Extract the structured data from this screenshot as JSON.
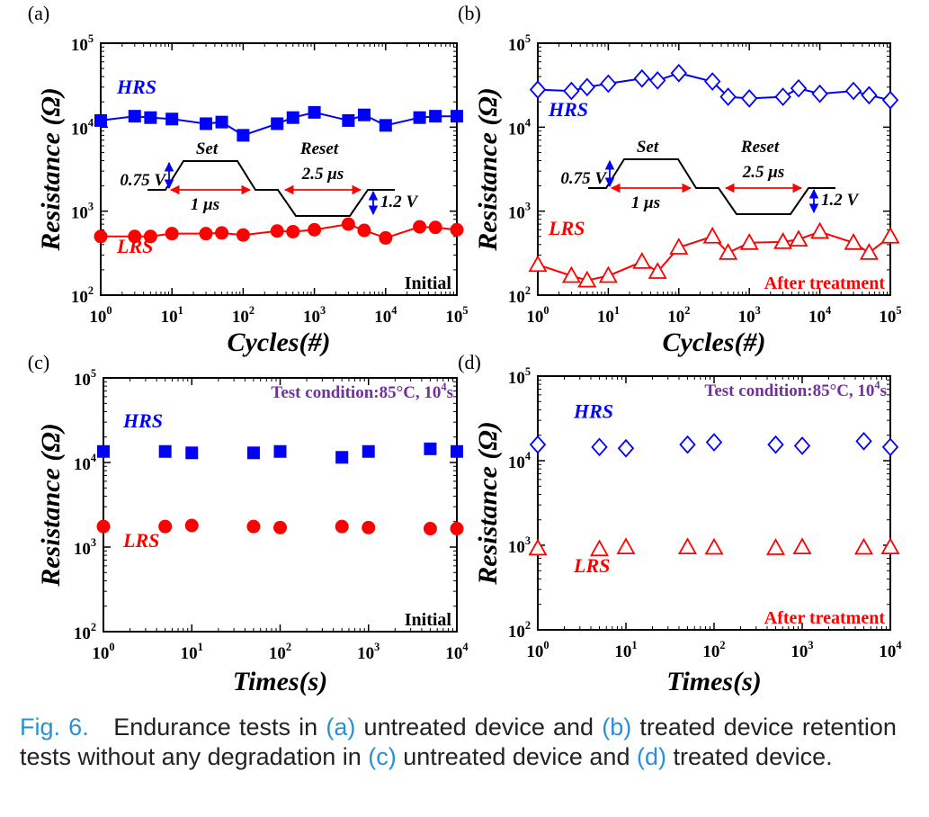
{
  "colors": {
    "hrs": "#0000ff",
    "lrs": "#ff0000",
    "condition": "#7030a0",
    "caption_ref": "#2a8fd6"
  },
  "caption": {
    "fig_label": "Fig. 6.",
    "t1": "Endurance tests in",
    "a": "(a)",
    "t2": "untreated device and",
    "b": "(b)",
    "t3": "treated device retention tests without any degradation in",
    "c": "(c)",
    "t4": "untreated device and",
    "d": "(d)",
    "t5": "treated device."
  },
  "chart_data": [
    {
      "panel": "(a)",
      "type": "line",
      "xlabel": "Cycles(#)",
      "ylabel": "Resistance (Ω)",
      "xscale": "log",
      "yscale": "log",
      "xlim": [
        1,
        100000
      ],
      "ylim": [
        100,
        100000
      ],
      "x_ticks": [
        "10^0",
        "10^1",
        "10^2",
        "10^3",
        "10^4",
        "10^5"
      ],
      "y_ticks": [
        "10^2",
        "10^3",
        "10^4",
        "10^5"
      ],
      "state_label": "Initial",
      "pulse_inset": {
        "set": "Set",
        "reset": "Reset",
        "set_v": "0.75 V",
        "set_t": "1 μs",
        "reset_t": "2.5 μs",
        "reset_v": "1.2 V"
      },
      "series": [
        {
          "name": "HRS",
          "marker": "square-filled",
          "x": [
            1,
            3,
            5,
            10,
            30,
            50,
            100,
            300,
            500,
            1000,
            3000,
            5000,
            10000,
            30000,
            50000,
            100000
          ],
          "y": [
            12000,
            13500,
            13000,
            12500,
            11000,
            11500,
            8000,
            11000,
            13000,
            15000,
            12000,
            14000,
            10500,
            13000,
            13500,
            13500
          ]
        },
        {
          "name": "LRS",
          "marker": "circle-filled",
          "x": [
            1,
            3,
            5,
            10,
            30,
            50,
            100,
            300,
            500,
            1000,
            3000,
            5000,
            10000,
            30000,
            50000,
            100000
          ],
          "y": [
            500,
            500,
            500,
            540,
            540,
            550,
            520,
            580,
            570,
            600,
            700,
            590,
            480,
            650,
            640,
            600
          ]
        }
      ]
    },
    {
      "panel": "(b)",
      "type": "line",
      "xlabel": "Cycles(#)",
      "ylabel": "Resistance (Ω)",
      "xscale": "log",
      "yscale": "log",
      "xlim": [
        1,
        100000
      ],
      "ylim": [
        100,
        100000
      ],
      "x_ticks": [
        "10^0",
        "10^1",
        "10^2",
        "10^3",
        "10^4",
        "10^5"
      ],
      "y_ticks": [
        "10^2",
        "10^3",
        "10^4",
        "10^5"
      ],
      "state_label": "After treatment",
      "pulse_inset": {
        "set": "Set",
        "reset": "Reset",
        "set_v": "0.75 V",
        "set_t": "1 μs",
        "reset_t": "2.5 μs",
        "reset_v": "1.2 V"
      },
      "series": [
        {
          "name": "HRS",
          "marker": "diamond-open",
          "x": [
            1,
            3,
            5,
            10,
            30,
            50,
            100,
            300,
            500,
            1000,
            3000,
            5000,
            10000,
            30000,
            50000,
            100000
          ],
          "y": [
            28000,
            27000,
            30000,
            33000,
            38000,
            36000,
            44000,
            35000,
            23000,
            22000,
            23000,
            29000,
            25000,
            27000,
            24000,
            21000
          ]
        },
        {
          "name": "LRS",
          "marker": "triangle-open",
          "x": [
            1,
            3,
            5,
            10,
            30,
            50,
            100,
            300,
            500,
            1000,
            3000,
            5000,
            10000,
            30000,
            50000,
            100000
          ],
          "y": [
            230,
            170,
            150,
            170,
            250,
            190,
            370,
            500,
            320,
            420,
            430,
            460,
            570,
            420,
            320,
            500
          ]
        }
      ]
    },
    {
      "panel": "(c)",
      "type": "scatter",
      "xlabel": "Times(s)",
      "ylabel": "Resistance (Ω)",
      "xscale": "log",
      "yscale": "log",
      "xlim": [
        1,
        10000
      ],
      "ylim": [
        100,
        100000
      ],
      "x_ticks": [
        "10^0",
        "10^1",
        "10^2",
        "10^3",
        "10^4"
      ],
      "y_ticks": [
        "10^2",
        "10^3",
        "10^4",
        "10^5"
      ],
      "state_label": "Initial",
      "condition": "Test condition:85°C, 10^4s",
      "series": [
        {
          "name": "HRS",
          "marker": "square-filled",
          "x": [
            1,
            5,
            10,
            50,
            100,
            500,
            1000,
            5000,
            10000
          ],
          "y": [
            13500,
            13500,
            13000,
            13000,
            13500,
            11500,
            13500,
            14500,
            13500
          ]
        },
        {
          "name": "LRS",
          "marker": "circle-filled",
          "x": [
            1,
            5,
            10,
            50,
            100,
            500,
            1000,
            5000,
            10000
          ],
          "y": [
            1750,
            1750,
            1800,
            1750,
            1700,
            1750,
            1700,
            1650,
            1650
          ]
        }
      ]
    },
    {
      "panel": "(d)",
      "type": "scatter",
      "xlabel": "Times(s)",
      "ylabel": "Resistance (Ω)",
      "xscale": "log",
      "yscale": "log",
      "xlim": [
        1,
        10000
      ],
      "ylim": [
        100,
        100000
      ],
      "x_ticks": [
        "10^0",
        "10^1",
        "10^2",
        "10^3",
        "10^4"
      ],
      "y_ticks": [
        "10^2",
        "10^3",
        "10^4",
        "10^5"
      ],
      "state_label": "After treatment",
      "condition": "Test condition:85°C, 10^4s",
      "series": [
        {
          "name": "HRS",
          "marker": "diamond-open",
          "x": [
            1,
            5,
            10,
            50,
            100,
            500,
            1000,
            5000,
            10000
          ],
          "y": [
            15500,
            14500,
            14000,
            15500,
            16500,
            15500,
            15000,
            17000,
            14500
          ]
        },
        {
          "name": "LRS",
          "marker": "triangle-open",
          "x": [
            1,
            5,
            10,
            50,
            100,
            500,
            1000,
            5000,
            10000
          ],
          "y": [
            920,
            900,
            950,
            950,
            940,
            930,
            950,
            940,
            950
          ]
        }
      ]
    }
  ]
}
